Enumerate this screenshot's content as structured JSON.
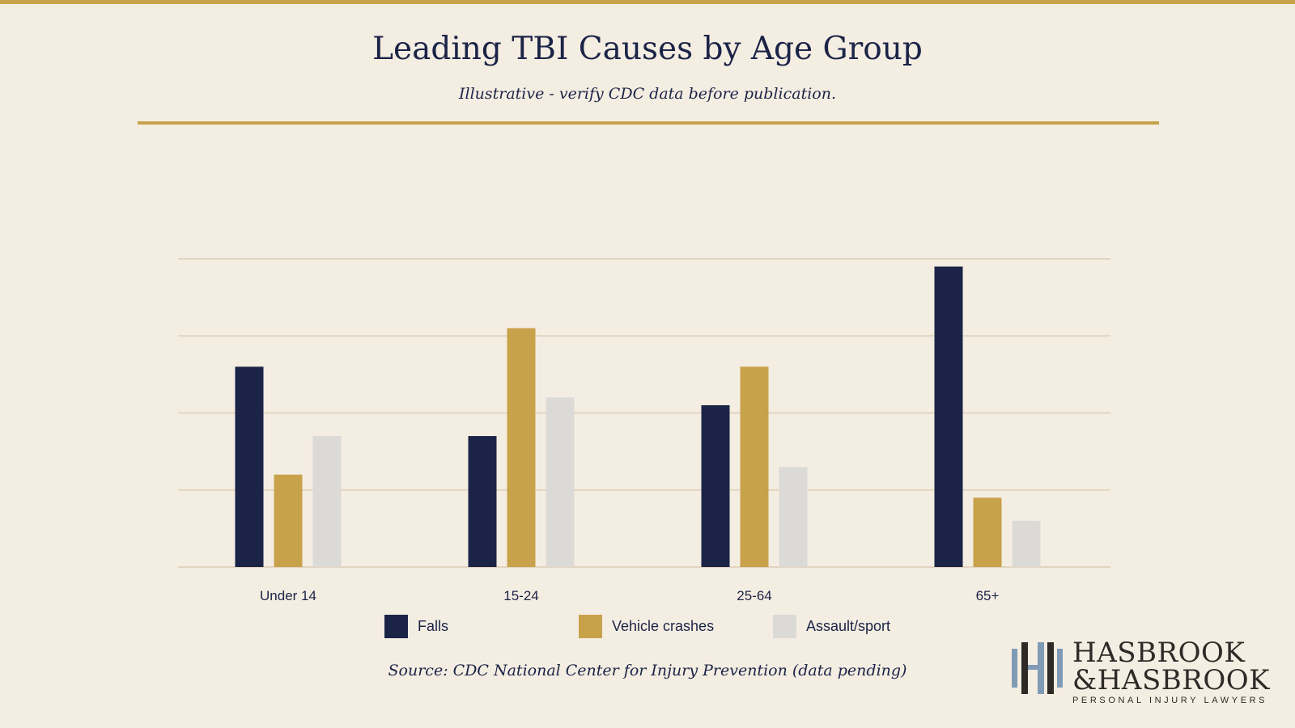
{
  "header": {
    "title": "Leading TBI Causes by Age Group",
    "subtitle": "Illustrative - verify CDC data before publication."
  },
  "footer": {
    "source": "Source: CDC National Center for Injury Prevention (data pending)"
  },
  "logo": {
    "line1": "HASBROOK",
    "line2": "&HASBROOK",
    "tagline": "PERSONAL INJURY LAWYERS"
  },
  "colors": {
    "accent": "#c8a24b",
    "navy": "#1b2447",
    "gold": "#c8a24b",
    "gray": "#dcdad6",
    "grid": "#e2d5bf",
    "background": "#f4ede2"
  },
  "chart_data": {
    "type": "bar",
    "title": "Leading TBI Causes by Age Group",
    "subtitle": "Illustrative - verify CDC data before publication.",
    "categories": [
      "Under 14",
      "15-24",
      "25-64",
      "65+"
    ],
    "series": [
      {
        "name": "Falls",
        "color": "#1b2447",
        "values": [
          26,
          17,
          21,
          39
        ]
      },
      {
        "name": "Vehicle crashes",
        "color": "#c8a24b",
        "values": [
          12,
          31,
          26,
          9
        ]
      },
      {
        "name": "Assault/sport",
        "color": "#dcdad6",
        "values": [
          17,
          22,
          13,
          6
        ]
      }
    ],
    "ylim": [
      0,
      40
    ],
    "grid": true,
    "legend": "bottom-center"
  }
}
